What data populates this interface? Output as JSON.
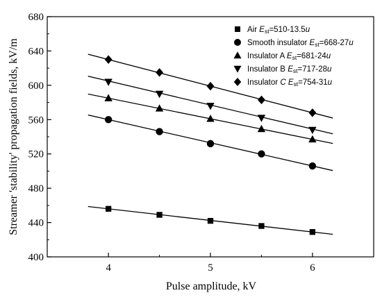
{
  "chart_data": {
    "type": "scatter",
    "xlabel": "Pulse amplitude,   kV",
    "ylabel": "Streamer 'stability' propagation fields,   kV/m",
    "xlim": [
      3.4,
      6.6
    ],
    "ylim": [
      400,
      680
    ],
    "xticks": [
      4,
      5,
      6
    ],
    "yticks": [
      400,
      440,
      480,
      520,
      560,
      600,
      640,
      680
    ],
    "grid": false,
    "legend_position": "top-right",
    "fit_x_range": [
      3.8,
      6.2
    ],
    "series": [
      {
        "name": "Air",
        "formula_var": "E",
        "formula_sub": "st",
        "formula_rest": "=510-13.5",
        "formula_unit": "u",
        "marker": "square",
        "intercept": 510,
        "slope": -13.5,
        "x": [
          4,
          4.5,
          5,
          5.5,
          6
        ],
        "y": [
          456,
          449,
          442,
          436,
          429
        ]
      },
      {
        "name": "Smooth insulator",
        "formula_var": "E",
        "formula_sub": "st",
        "formula_rest": "=668-27",
        "formula_unit": "u",
        "marker": "circle",
        "intercept": 668,
        "slope": -27,
        "x": [
          4,
          4.5,
          5,
          5.5,
          6
        ],
        "y": [
          560,
          546,
          532,
          520,
          506
        ]
      },
      {
        "name": "Insulator A",
        "formula_var": "E",
        "formula_sub": "st",
        "formula_rest": "=681-24",
        "formula_unit": "u",
        "marker": "triangle-up",
        "intercept": 681,
        "slope": -24,
        "x": [
          4,
          4.5,
          5,
          5.5,
          6
        ],
        "y": [
          585,
          573,
          561,
          549,
          537
        ]
      },
      {
        "name": "Insulator B",
        "formula_var": "E",
        "formula_sub": "st",
        "formula_rest": "=717-28",
        "formula_unit": "u",
        "marker": "triangle-down",
        "intercept": 717,
        "slope": -28,
        "x": [
          4,
          4.5,
          5,
          5.5,
          6
        ],
        "y": [
          604,
          590,
          576,
          562,
          548
        ]
      },
      {
        "name": "Insulator ",
        "name_italic": "C",
        "formula_var": "E",
        "formula_sub": "st",
        "formula_rest": "=754-31",
        "formula_unit": "u",
        "marker": "diamond",
        "intercept": 754,
        "slope": -31,
        "x": [
          4,
          4.5,
          5,
          5.5,
          6
        ],
        "y": [
          630,
          615,
          599,
          583,
          568
        ]
      }
    ]
  }
}
